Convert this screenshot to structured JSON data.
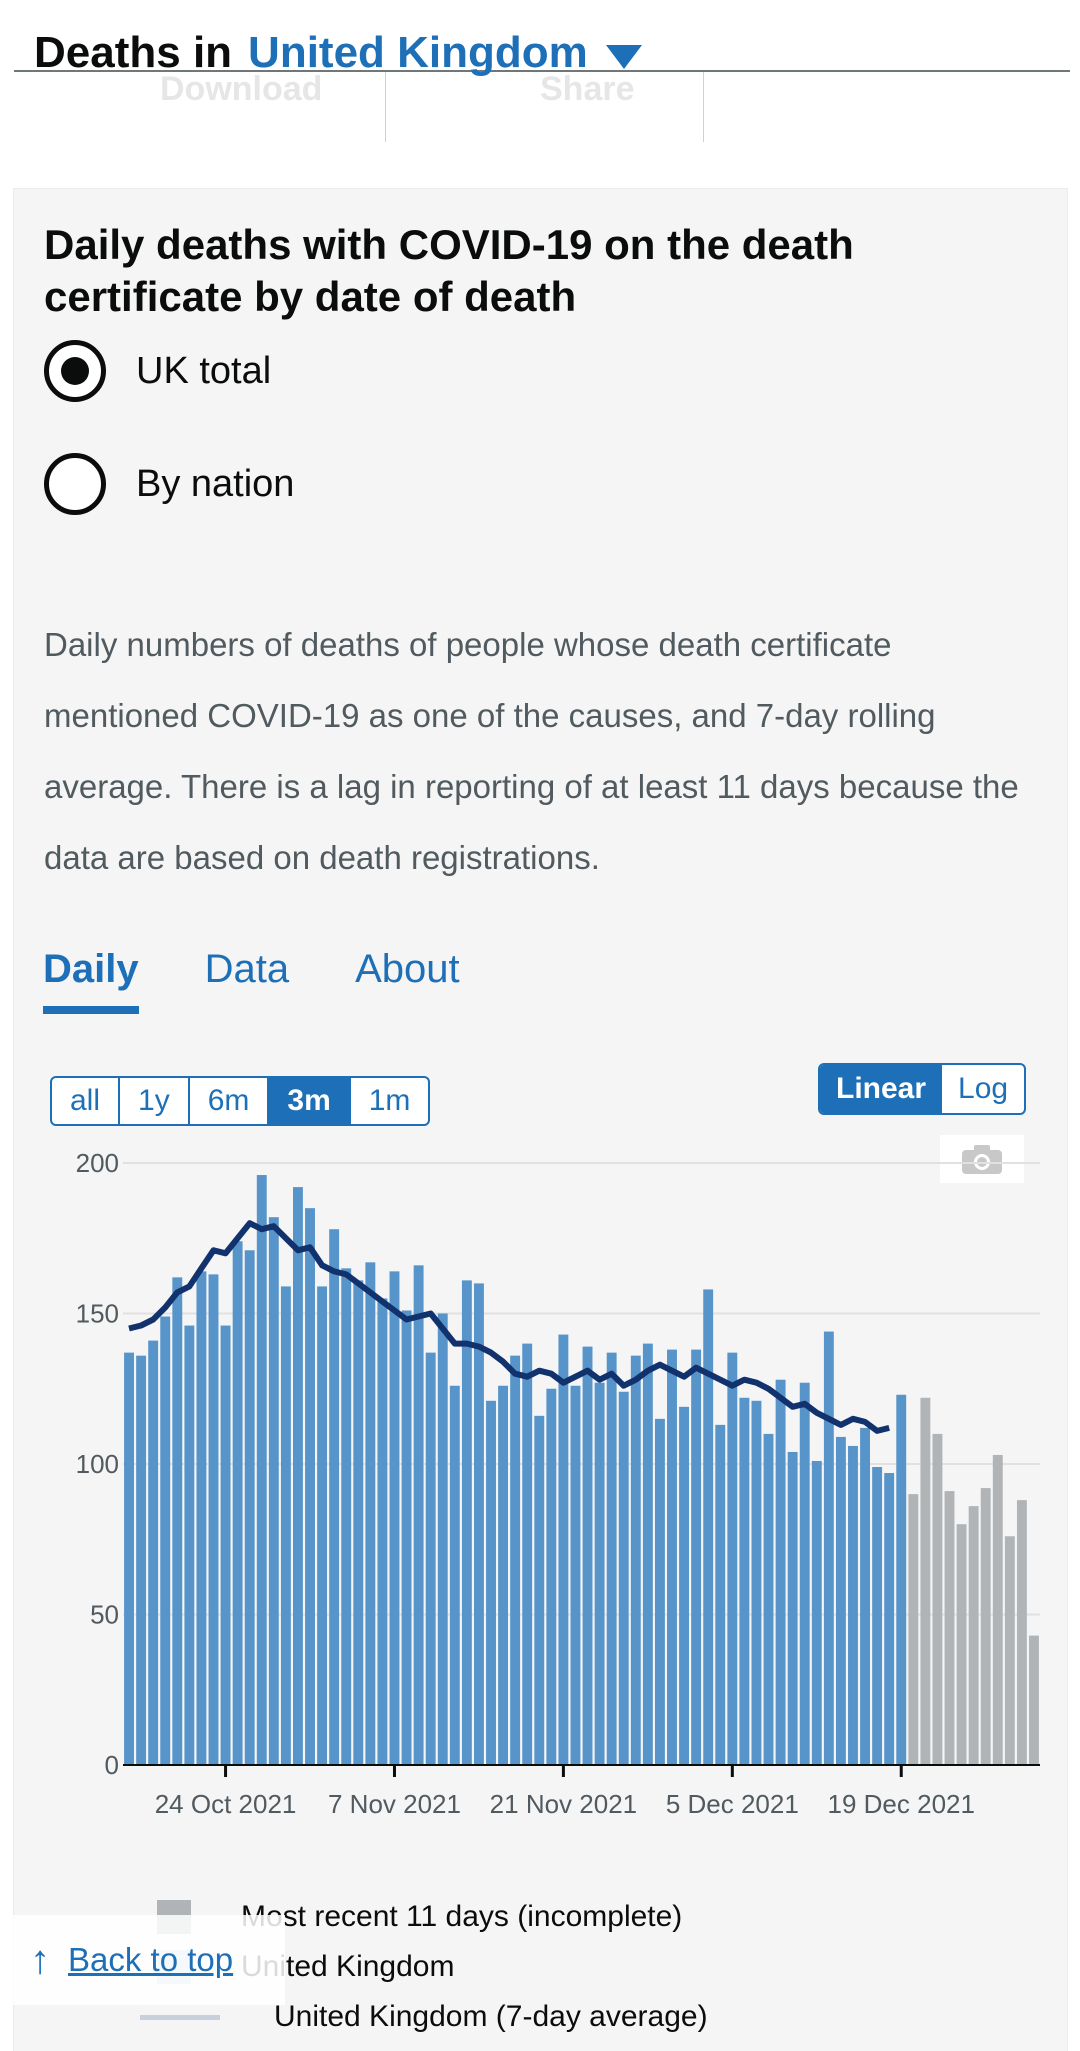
{
  "header": {
    "prefix": "Deaths in",
    "area": "United Kingdom",
    "download_label": "Download",
    "share_label": "Share"
  },
  "card": {
    "title": "Daily deaths with COVID-19 on the death certificate by date of death",
    "radio_uk": "UK total",
    "radio_nation": "By nation",
    "description": "Daily numbers of deaths of people whose death certificate mentioned COVID-19 as one of the causes, and 7-day rolling average. There is a lag in reporting of at least 11 days because the data are based on death registrations."
  },
  "tabs": [
    {
      "label": "Daily"
    },
    {
      "label": "Data"
    },
    {
      "label": "About"
    }
  ],
  "range_buttons": [
    "all",
    "1y",
    "6m",
    "3m",
    "1m"
  ],
  "range_selected": "3m",
  "scale_buttons": [
    "Linear",
    "Log"
  ],
  "scale_selected": "Linear",
  "colors": {
    "complete": "#5694ca",
    "incomplete": "#b1b4b6",
    "average": "#12326e",
    "accent": "#1d70b8"
  },
  "legend": {
    "incomplete": "Most recent 11 days (incomplete)",
    "series": "United Kingdom",
    "average": "United Kingdom (7-day average)"
  },
  "back_to_top": "Back to top",
  "chart_data": {
    "type": "bar",
    "title": "Daily deaths with COVID-19 on the death certificate by date of death",
    "ylim": [
      0,
      200
    ],
    "yticks": [
      0,
      50,
      100,
      150,
      200
    ],
    "xtick_labels": [
      "24 Oct 2021",
      "7 Nov 2021",
      "21 Nov 2021",
      "5 Dec 2021",
      "19 Dec 2021"
    ],
    "xtick_index": [
      8,
      22,
      36,
      50,
      64
    ],
    "values": [
      137,
      136,
      141,
      149,
      162,
      146,
      164,
      163,
      146,
      174,
      171,
      196,
      182,
      159,
      192,
      185,
      159,
      178,
      165,
      161,
      167,
      155,
      164,
      151,
      166,
      137,
      150,
      126,
      161,
      160,
      121,
      126,
      136,
      140,
      116,
      125,
      143,
      126,
      139,
      127,
      137,
      124,
      136,
      140,
      115,
      138,
      119,
      138,
      158,
      113,
      137,
      122,
      121,
      110,
      128,
      104,
      127,
      101,
      144,
      109,
      106,
      112,
      99,
      97,
      123,
      90,
      122,
      110,
      91,
      80,
      86,
      92,
      103,
      76,
      88,
      43
    ],
    "incomplete_from": 65,
    "average": [
      145,
      146,
      148,
      152,
      157,
      159,
      165,
      171,
      170,
      175,
      180,
      178,
      179,
      175,
      171,
      172,
      166,
      164,
      163,
      160,
      157,
      154,
      151,
      148,
      149,
      150,
      145,
      140,
      140,
      139,
      137,
      134,
      130,
      129,
      131,
      130,
      127,
      129,
      131,
      128,
      130,
      126,
      128,
      131,
      133,
      131,
      129,
      132,
      130,
      128,
      126,
      128,
      127,
      125,
      122,
      119,
      120,
      117,
      115,
      113,
      115,
      114,
      111,
      112
    ]
  }
}
